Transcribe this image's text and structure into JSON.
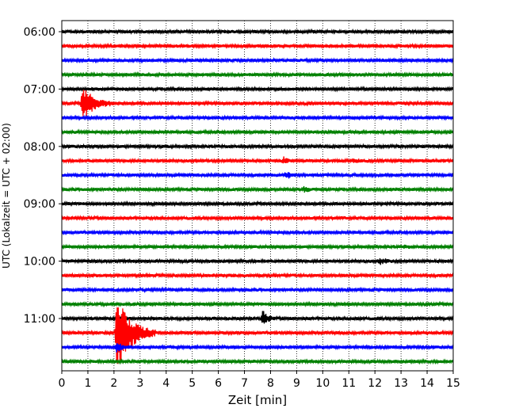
{
  "chart_data": {
    "type": "line",
    "title": "",
    "xlabel": "Zeit  [min]",
    "ylabel": "UTC (Lokalzeit = UTC + 02:00)",
    "xlim": [
      0,
      15
    ],
    "x_ticks": [
      0,
      1,
      2,
      3,
      4,
      5,
      6,
      7,
      8,
      9,
      10,
      11,
      12,
      13,
      14,
      15
    ],
    "y_ticks": [
      "06:00",
      "07:00",
      "08:00",
      "09:00",
      "10:00",
      "11:00"
    ],
    "grid": "vertical dotted",
    "legend": "none",
    "trace_start": "06:00",
    "trace_interval_min": 15,
    "trace_count": 24,
    "colors_cycle": [
      "#000000",
      "#ff0000",
      "#0000ff",
      "#008000"
    ],
    "traces": [
      {
        "start": "06:00",
        "color": "#000000",
        "events": []
      },
      {
        "start": "06:15",
        "color": "#ff0000",
        "events": []
      },
      {
        "start": "06:30",
        "color": "#0000ff",
        "events": []
      },
      {
        "start": "06:45",
        "color": "#008000",
        "events": []
      },
      {
        "start": "07:00",
        "color": "#000000",
        "events": []
      },
      {
        "start": "07:15",
        "color": "#ff0000",
        "events": [
          {
            "t": 0.8,
            "amp": 3.2,
            "dur": 1.2
          }
        ]
      },
      {
        "start": "07:30",
        "color": "#0000ff",
        "events": []
      },
      {
        "start": "07:45",
        "color": "#008000",
        "events": []
      },
      {
        "start": "08:00",
        "color": "#000000",
        "events": []
      },
      {
        "start": "08:15",
        "color": "#ff0000",
        "events": [
          {
            "t": 8.5,
            "amp": 0.5,
            "dur": 0.4
          },
          {
            "t": 11.2,
            "amp": 0.3,
            "dur": 0.5
          }
        ]
      },
      {
        "start": "08:30",
        "color": "#0000ff",
        "events": [
          {
            "t": 8.6,
            "amp": 0.6,
            "dur": 0.4
          }
        ]
      },
      {
        "start": "08:45",
        "color": "#008000",
        "events": [
          {
            "t": 9.3,
            "amp": 0.5,
            "dur": 0.4
          }
        ]
      },
      {
        "start": "09:00",
        "color": "#000000",
        "events": []
      },
      {
        "start": "09:15",
        "color": "#ff0000",
        "events": []
      },
      {
        "start": "09:30",
        "color": "#0000ff",
        "events": []
      },
      {
        "start": "09:45",
        "color": "#008000",
        "events": [
          {
            "t": 13.1,
            "amp": 0.3,
            "dur": 0.3
          }
        ]
      },
      {
        "start": "10:00",
        "color": "#000000",
        "events": [
          {
            "t": 12.2,
            "amp": 0.5,
            "dur": 0.6
          }
        ]
      },
      {
        "start": "10:15",
        "color": "#ff0000",
        "events": []
      },
      {
        "start": "10:30",
        "color": "#0000ff",
        "events": []
      },
      {
        "start": "10:45",
        "color": "#008000",
        "events": []
      },
      {
        "start": "11:00",
        "color": "#000000",
        "events": [
          {
            "t": 7.7,
            "amp": 1.6,
            "dur": 0.5
          }
        ]
      },
      {
        "start": "11:15",
        "color": "#ff0000",
        "events": [
          {
            "t": 2.1,
            "amp": 7.0,
            "dur": 1.5
          }
        ]
      },
      {
        "start": "11:30",
        "color": "#0000ff",
        "events": [
          {
            "t": 2.1,
            "amp": 0.8,
            "dur": 0.5
          }
        ]
      },
      {
        "start": "11:45",
        "color": "#008000",
        "events": []
      }
    ]
  }
}
